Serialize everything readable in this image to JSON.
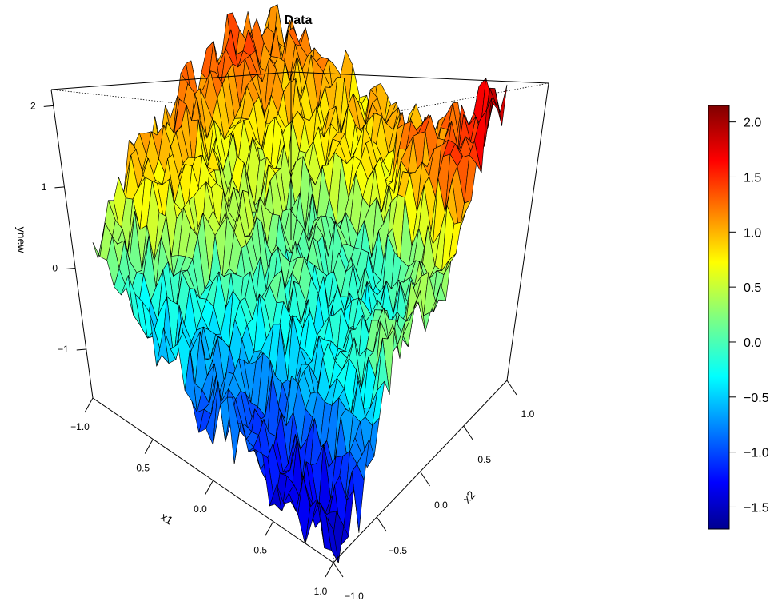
{
  "chart_data": {
    "type": "surface3d",
    "title": "Data",
    "xlabel": "x1",
    "ylabel": "x2",
    "zlabel": "ynew",
    "x_ticks": [
      "−1.0",
      "−0.5",
      "0.0",
      "0.5",
      "1.0"
    ],
    "y_ticks": [
      "−1.0",
      "−0.5",
      "0.0",
      "0.5",
      "1.0"
    ],
    "z_ticks": [
      "−1",
      "0",
      "1",
      "2"
    ],
    "xlim": [
      -1,
      1
    ],
    "ylim": [
      -1,
      1
    ],
    "zlim": [
      -1.6,
      2.2
    ],
    "colorbar": {
      "ticks": [
        "2.0",
        "1.5",
        "1.0",
        "0.5",
        "0.0",
        "−0.5",
        "−1.0",
        "−1.5"
      ],
      "range": [
        -1.7,
        2.15
      ],
      "colormap": "jet"
    },
    "surface_description": "noisy saddle-like surface: high near x1=-1,x2=-1 and x1=-1,x2=1, low near x1=1,x2=-1, mid-high along x2=1 edge",
    "surface_samples": [
      {
        "x1": -1.0,
        "x2": -1.0,
        "z": 0.2
      },
      {
        "x1": -1.0,
        "x2": -0.5,
        "z": 0.9
      },
      {
        "x1": -1.0,
        "x2": 0.0,
        "z": 1.2
      },
      {
        "x1": -1.0,
        "x2": 0.5,
        "z": 1.3
      },
      {
        "x1": -1.0,
        "x2": 1.0,
        "z": 1.1
      },
      {
        "x1": -0.5,
        "x2": -1.0,
        "z": -0.3
      },
      {
        "x1": -0.5,
        "x2": 0.0,
        "z": 0.5
      },
      {
        "x1": -0.5,
        "x2": 1.0,
        "z": 1.0
      },
      {
        "x1": 0.0,
        "x2": -1.0,
        "z": -0.8
      },
      {
        "x1": 0.0,
        "x2": 0.0,
        "z": 0.0
      },
      {
        "x1": 0.0,
        "x2": 1.0,
        "z": 0.8
      },
      {
        "x1": 0.5,
        "x2": -1.0,
        "z": -1.2
      },
      {
        "x1": 0.5,
        "x2": 0.0,
        "z": -0.2
      },
      {
        "x1": 0.5,
        "x2": 1.0,
        "z": 1.2
      },
      {
        "x1": 1.0,
        "x2": -1.0,
        "z": -1.3
      },
      {
        "x1": 1.0,
        "x2": 0.0,
        "z": 0.3
      },
      {
        "x1": 1.0,
        "x2": 1.0,
        "z": 1.8
      }
    ]
  }
}
